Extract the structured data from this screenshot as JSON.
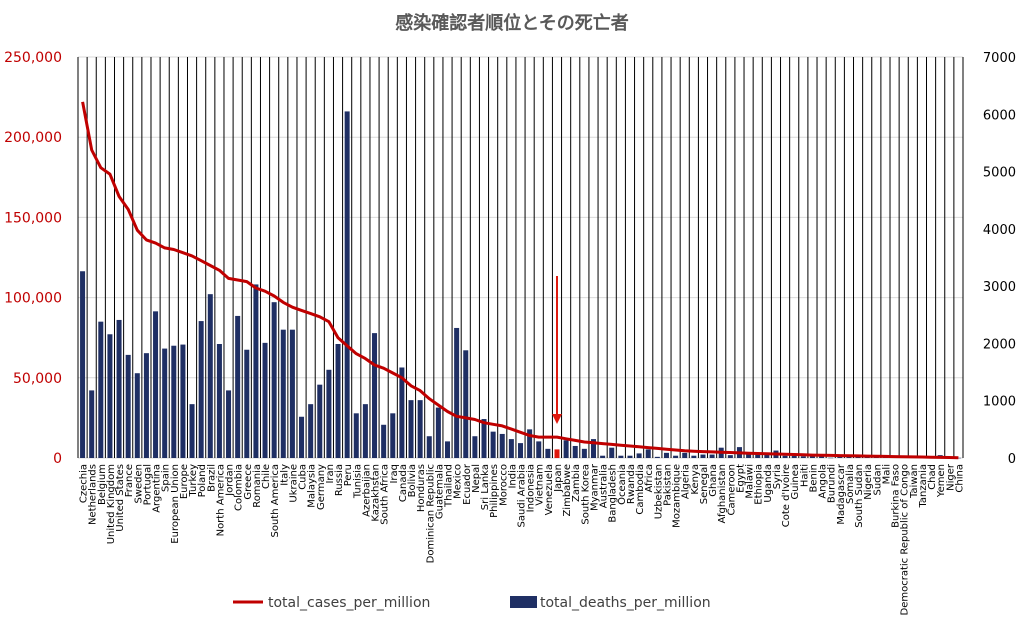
{
  "chart_data": {
    "type": "bar",
    "title": "感染確認者順位とその死亡者",
    "left_axis": {
      "ylim": [
        0,
        250000
      ],
      "ticks": [
        "0",
        "50,000",
        "100,000",
        "150,000",
        "200,000",
        "250,000"
      ],
      "tick_values": [
        0,
        50000,
        100000,
        150000,
        200000,
        250000
      ],
      "color": "#c00000"
    },
    "right_axis": {
      "ylim": [
        0,
        7000
      ],
      "ticks": [
        "0",
        "1000",
        "2000",
        "3000",
        "4000",
        "5000",
        "6000",
        "7000"
      ],
      "tick_values": [
        0,
        1000,
        2000,
        3000,
        4000,
        5000,
        6000,
        7000
      ]
    },
    "categories": [
      "Czechia",
      "Netherlands",
      "Belgium",
      "United Kingdom",
      "United States",
      "France",
      "Sweden",
      "Portugal",
      "Argentina",
      "Spain",
      "European Union",
      "Europe",
      "Turkey",
      "Poland",
      "Brazil",
      "North America",
      "Jordan",
      "Colombia",
      "Greece",
      "Romania",
      "Chile",
      "South America",
      "Italy",
      "Ukraine",
      "Cuba",
      "Malaysia",
      "Germany",
      "Iran",
      "Russia",
      "Peru",
      "Tunisia",
      "Azerbaijan",
      "Kazakhstan",
      "South Africa",
      "Iraq",
      "Canada",
      "Bolivia",
      "Honduras",
      "Dominican Republic",
      "Guatemala",
      "Thailand",
      "Mexico",
      "Ecuador",
      "Nepal",
      "Sri Lanka",
      "Philippines",
      "Morocco",
      "India",
      "Saudi Arabia",
      "Indonesia",
      "Vietnam",
      "Venezuela",
      "Japan",
      "Zimbabwe",
      "Zambia",
      "South Korea",
      "Myanmar",
      "Australia",
      "Bangladesh",
      "Oceania",
      "Rwanda",
      "Cambodia",
      "Africa",
      "Uzbekistan",
      "Pakistan",
      "Mozambique",
      "Algeria",
      "Kenya",
      "Senegal",
      "Ghana",
      "Afghanistan",
      "Cameroon",
      "Egypt",
      "Malawi",
      "Ethiopia",
      "Uganda",
      "Syria",
      "Cote d'Ivoire",
      "Guinea",
      "Haiti",
      "Benin",
      "Angola",
      "Burundi",
      "Madagascar",
      "Somalia",
      "South Sudan",
      "Nigeria",
      "Sudan",
      "Mali",
      "Burkina Faso",
      "Democratic Republic of Congo",
      "Taiwan",
      "Tanzania",
      "Chad",
      "Yemen",
      "Niger",
      "China"
    ],
    "series": [
      {
        "name": "total_cases_per_million",
        "type": "line",
        "axis": "left",
        "color": "#c00000",
        "values": [
          222000,
          192000,
          181000,
          177000,
          163000,
          155000,
          142000,
          136000,
          134000,
          131000,
          130000,
          128000,
          126000,
          123000,
          120000,
          117000,
          112000,
          111000,
          110000,
          106000,
          104000,
          101000,
          97000,
          94000,
          92000,
          90000,
          88000,
          85000,
          75000,
          70000,
          65000,
          62000,
          58000,
          56000,
          53000,
          50000,
          45000,
          42000,
          37000,
          33000,
          29000,
          26000,
          25000,
          24000,
          22000,
          21000,
          20000,
          18000,
          16000,
          14000,
          13000,
          13000,
          13000,
          12000,
          11000,
          10000,
          9500,
          9000,
          8500,
          8000,
          7500,
          7000,
          6500,
          6000,
          5500,
          5000,
          4500,
          4200,
          4000,
          3800,
          3600,
          3400,
          3200,
          3000,
          2800,
          2600,
          2500,
          2400,
          2200,
          2000,
          1800,
          1700,
          1600,
          1500,
          1400,
          1300,
          1200,
          1100,
          1000,
          900,
          800,
          700,
          600,
          500,
          400,
          300,
          100
        ]
      },
      {
        "name": "total_deaths_per_million",
        "type": "bar",
        "axis": "right",
        "color": "#1f2f64",
        "values": [
          3260,
          1180,
          2380,
          2160,
          2410,
          1800,
          1480,
          1830,
          2560,
          1910,
          1960,
          1980,
          940,
          2390,
          2860,
          1990,
          1180,
          2480,
          1890,
          3030,
          2010,
          2720,
          2240,
          2240,
          720,
          940,
          1280,
          1540,
          1990,
          6050,
          780,
          940,
          2180,
          580,
          780,
          1580,
          1010,
          1010,
          380,
          880,
          290,
          2270,
          1880,
          380,
          680,
          460,
          420,
          330,
          260,
          500,
          290,
          160,
          150,
          310,
          210,
          160,
          330,
          40,
          180,
          40,
          40,
          80,
          150,
          20,
          90,
          40,
          90,
          40,
          60,
          60,
          180,
          50,
          190,
          80,
          70,
          90,
          130,
          40,
          40,
          30,
          30,
          30,
          5,
          40,
          60,
          30,
          30,
          20,
          30,
          30,
          20,
          10,
          10,
          10,
          50,
          10,
          3
        ],
        "highlight_index": 52,
        "highlight_color": "#e0190e"
      }
    ],
    "legend": {
      "position": "bottom",
      "items": [
        "total_cases_per_million",
        "total_deaths_per_million"
      ]
    },
    "annotation": {
      "type": "arrow",
      "target": "Japan",
      "color": "#e0190e"
    },
    "grid": true
  }
}
